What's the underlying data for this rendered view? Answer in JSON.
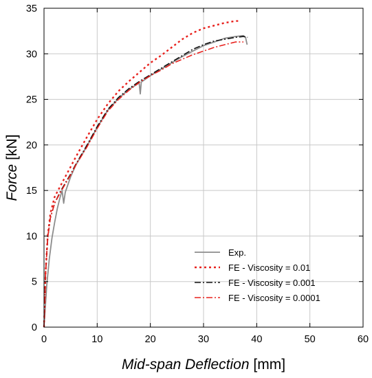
{
  "chart_data": {
    "type": "line",
    "xlabel_italic": "Mid-span Deflection",
    "xlabel_unit": "[mm]",
    "ylabel_italic": "Force",
    "ylabel_unit": "[kN]",
    "xlim": [
      0,
      60
    ],
    "ylim": [
      0,
      35
    ],
    "xticks": [
      0,
      10,
      20,
      30,
      40,
      50,
      60
    ],
    "yticks": [
      0,
      5,
      10,
      15,
      20,
      25,
      30,
      35
    ],
    "grid": true,
    "legend_position": "bottom-right",
    "series": [
      {
        "name": "Exp.",
        "color": "#8c8c8c",
        "style": "solid",
        "points": [
          [
            0,
            0
          ],
          [
            0.5,
            4.5
          ],
          [
            1,
            7.5
          ],
          [
            1.5,
            9.8
          ],
          [
            2,
            11.5
          ],
          [
            2.5,
            13
          ],
          [
            3,
            14.2
          ],
          [
            3.4,
            15
          ],
          [
            3.7,
            13.6
          ],
          [
            4,
            14.8
          ],
          [
            5,
            16.5
          ],
          [
            6,
            17.8
          ],
          [
            8,
            19.8
          ],
          [
            10,
            21.9
          ],
          [
            12,
            23.8
          ],
          [
            14,
            25.1
          ],
          [
            16,
            26.1
          ],
          [
            17.9,
            26.8
          ],
          [
            18.1,
            25.6
          ],
          [
            18.3,
            26.9
          ],
          [
            20,
            27.6
          ],
          [
            22,
            28.3
          ],
          [
            24,
            29
          ],
          [
            26,
            29.7
          ],
          [
            28,
            30.3
          ],
          [
            30,
            30.9
          ],
          [
            32,
            31.3
          ],
          [
            34,
            31.7
          ],
          [
            36,
            31.9
          ],
          [
            37.5,
            32
          ],
          [
            37.9,
            31.8
          ],
          [
            38.2,
            31
          ]
        ]
      },
      {
        "name": "FE - Viscosity = 0.01",
        "color": "#e8201c",
        "style": "dotted",
        "points": [
          [
            0,
            0
          ],
          [
            0.3,
            6
          ],
          [
            0.7,
            10
          ],
          [
            1.2,
            12.5
          ],
          [
            2,
            14.3
          ],
          [
            3,
            15.4
          ],
          [
            4,
            16.5
          ],
          [
            5,
            17.6
          ],
          [
            6,
            18.7
          ],
          [
            8,
            20.8
          ],
          [
            10,
            22.8
          ],
          [
            12,
            24.5
          ],
          [
            14,
            25.9
          ],
          [
            16,
            27
          ],
          [
            18,
            28
          ],
          [
            20,
            29
          ],
          [
            22,
            29.8
          ],
          [
            24,
            30.7
          ],
          [
            26,
            31.6
          ],
          [
            28,
            32.3
          ],
          [
            30,
            32.8
          ],
          [
            32,
            33.1
          ],
          [
            34,
            33.4
          ],
          [
            36,
            33.6
          ],
          [
            37,
            33.6
          ]
        ]
      },
      {
        "name": "FE - Viscosity = 0.001",
        "color": "#111111",
        "style": "dashdot",
        "points": [
          [
            0,
            0
          ],
          [
            0.3,
            6
          ],
          [
            0.7,
            9.8
          ],
          [
            1.2,
            12
          ],
          [
            2,
            13.6
          ],
          [
            3,
            14.8
          ],
          [
            4,
            15.8
          ],
          [
            5,
            16.8
          ],
          [
            6,
            17.9
          ],
          [
            8,
            19.9
          ],
          [
            10,
            22
          ],
          [
            12,
            23.9
          ],
          [
            14,
            25.2
          ],
          [
            16,
            26.2
          ],
          [
            18,
            27
          ],
          [
            20,
            27.7
          ],
          [
            22,
            28.4
          ],
          [
            24,
            29.1
          ],
          [
            26,
            29.8
          ],
          [
            28,
            30.5
          ],
          [
            30,
            31
          ],
          [
            32,
            31.4
          ],
          [
            34,
            31.6
          ],
          [
            36,
            31.8
          ],
          [
            37.5,
            31.9
          ],
          [
            38.3,
            31.8
          ]
        ]
      },
      {
        "name": "FE - Viscosity = 0.0001",
        "color": "#e8201c",
        "style": "dashdot",
        "points": [
          [
            0,
            0
          ],
          [
            0.3,
            6
          ],
          [
            0.7,
            9.8
          ],
          [
            1.2,
            12
          ],
          [
            2,
            13.6
          ],
          [
            3,
            14.7
          ],
          [
            4,
            15.7
          ],
          [
            5,
            16.7
          ],
          [
            6,
            17.8
          ],
          [
            8,
            19.7
          ],
          [
            10,
            21.8
          ],
          [
            12,
            23.7
          ],
          [
            14,
            25
          ],
          [
            16,
            26
          ],
          [
            18,
            26.9
          ],
          [
            20,
            27.6
          ],
          [
            22,
            28.2
          ],
          [
            24,
            28.9
          ],
          [
            26,
            29.4
          ],
          [
            28,
            29.9
          ],
          [
            30,
            30.3
          ],
          [
            32,
            30.7
          ],
          [
            34,
            31
          ],
          [
            36,
            31.3
          ],
          [
            37.5,
            31.3
          ]
        ]
      }
    ]
  }
}
